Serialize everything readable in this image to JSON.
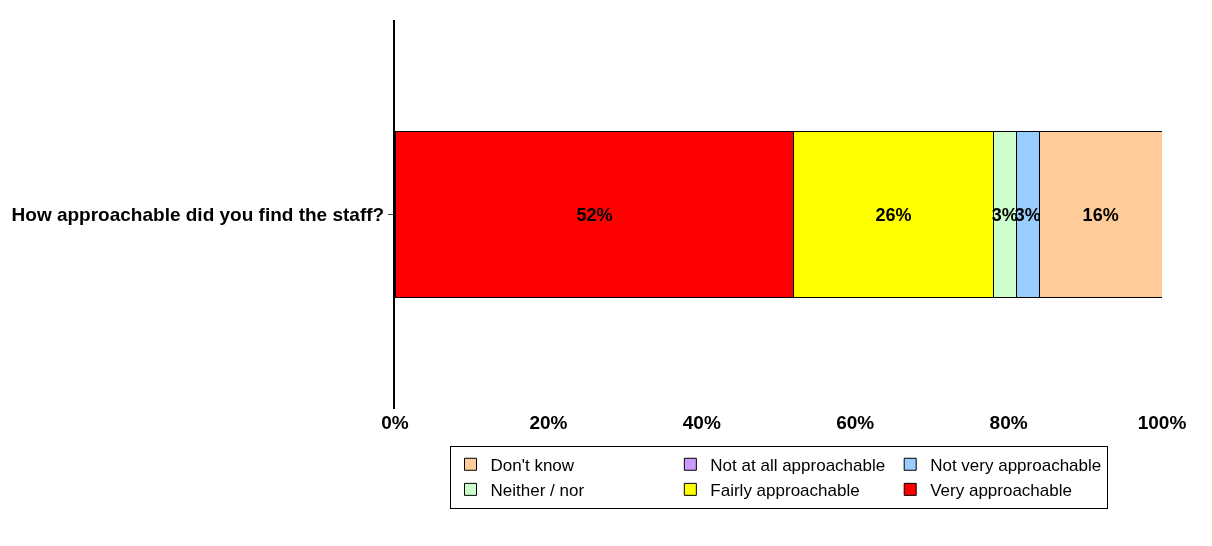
{
  "chart_data": {
    "type": "bar",
    "orientation": "horizontal",
    "stacked": true,
    "categories": [
      "How approachable did you find the staff?"
    ],
    "series": [
      {
        "name": "Very approachable",
        "color": "#ff0000",
        "values": [
          52
        ],
        "value_labels": [
          "52%"
        ]
      },
      {
        "name": "Fairly approachable",
        "color": "#ffff00",
        "values": [
          26
        ],
        "value_labels": [
          "26%"
        ]
      },
      {
        "name": "Neither / nor",
        "color": "#ccffcc",
        "values": [
          3
        ],
        "value_labels": [
          "3%"
        ]
      },
      {
        "name": "Not very approachable",
        "color": "#99ccff",
        "values": [
          3
        ],
        "value_labels": [
          "3%"
        ]
      },
      {
        "name": "Not at all approachable",
        "color": "#cc99ff",
        "values": [
          0
        ],
        "value_labels": [
          null
        ]
      },
      {
        "name": "Don't know",
        "color": "#ffcc99",
        "values": [
          16
        ],
        "value_labels": [
          "16%"
        ]
      }
    ],
    "xlim": [
      0,
      100
    ],
    "xticks": [
      {
        "value": 0,
        "label": "0%"
      },
      {
        "value": 20,
        "label": "20%"
      },
      {
        "value": 40,
        "label": "40%"
      },
      {
        "value": 60,
        "label": "60%"
      },
      {
        "value": 80,
        "label": "80%"
      },
      {
        "value": 100,
        "label": "100%"
      }
    ],
    "grid": false,
    "legend": "bottom"
  }
}
